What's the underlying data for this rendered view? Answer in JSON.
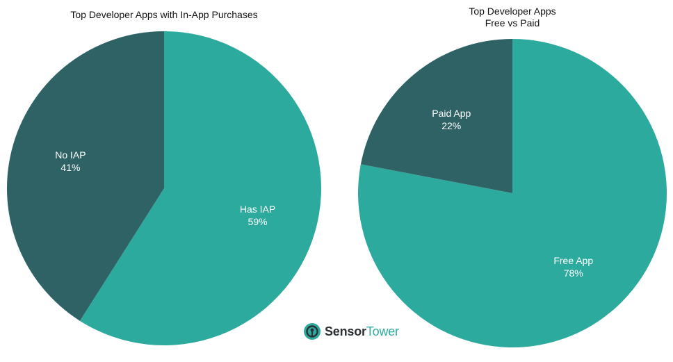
{
  "colors": {
    "primary": "#2daa9e",
    "secondary": "#2f6264",
    "label": "#ffffff",
    "brand_dark": "#2a2f33",
    "brand_accent": "#2daa9e"
  },
  "brand": {
    "name_part1": "Sensor",
    "name_part2": "Tower",
    "icon": "sensortower-logo-icon"
  },
  "chart_data": [
    {
      "type": "pie",
      "title_lines": [
        "Top Developer Apps with In-App Purchases"
      ],
      "start_angle_deg": 0,
      "direction": "clockwise",
      "legend": "none",
      "slices": [
        {
          "label": "Has IAP",
          "value": 59,
          "value_label": "59%",
          "color": "#2daa9e"
        },
        {
          "label": "No IAP",
          "value": 41,
          "value_label": "41%",
          "color": "#2f6264"
        }
      ]
    },
    {
      "type": "pie",
      "title_lines": [
        "Top Developer Apps",
        "Free vs Paid"
      ],
      "start_angle_deg": 0,
      "direction": "clockwise",
      "legend": "none",
      "slices": [
        {
          "label": "Free App",
          "value": 78,
          "value_label": "78%",
          "color": "#2daa9e"
        },
        {
          "label": "Paid App",
          "value": 22,
          "value_label": "22%",
          "color": "#2f6264"
        }
      ]
    }
  ]
}
